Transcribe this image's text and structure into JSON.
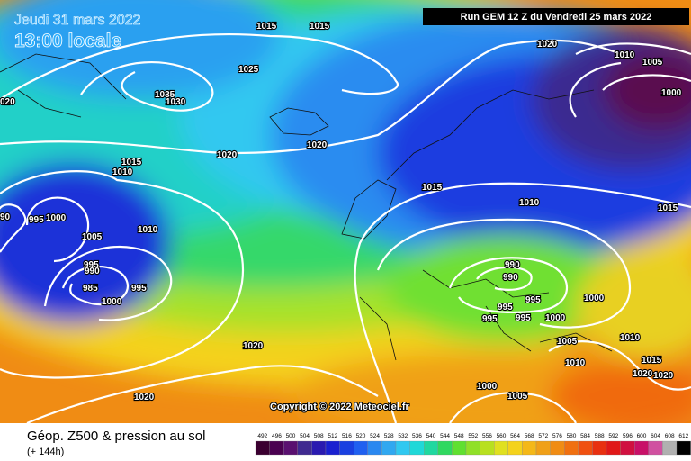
{
  "header": {
    "date": "Jeudi 31 mars 2022",
    "time": "13:00 locale",
    "run": "Run GEM 12 Z du Vendredi 25 mars 2022",
    "copyright": "Copyright © 2022 Meteociel.fr"
  },
  "footer": {
    "title": "Géop. Z500 & pression au sol",
    "lead": "(+ 144h)",
    "scale_labels": [
      "492",
      "496",
      "500",
      "504",
      "508",
      "512",
      "516",
      "520",
      "524",
      "528",
      "532",
      "536",
      "540",
      "544",
      "548",
      "552",
      "556",
      "560",
      "564",
      "568",
      "572",
      "576",
      "580",
      "584",
      "588",
      "592",
      "596",
      "600",
      "604",
      "608",
      "612"
    ]
  },
  "isobar_labels": [
    "1015",
    "1015",
    "1025",
    "1035",
    "1030",
    "020",
    "1020",
    "1010",
    "1005",
    "1000",
    "1020",
    "1020",
    "1015",
    "1010",
    "1015",
    "1010",
    "1015",
    "90",
    "995",
    "1000",
    "1005",
    "1010",
    "995",
    "990",
    "985",
    "995",
    "1000",
    "990",
    "990",
    "995",
    "995",
    "995",
    "995",
    "1000",
    "1000",
    "1005",
    "1010",
    "1010",
    "1015",
    "1020",
    "1020",
    "1020",
    "1020",
    "1000",
    "1005"
  ]
}
